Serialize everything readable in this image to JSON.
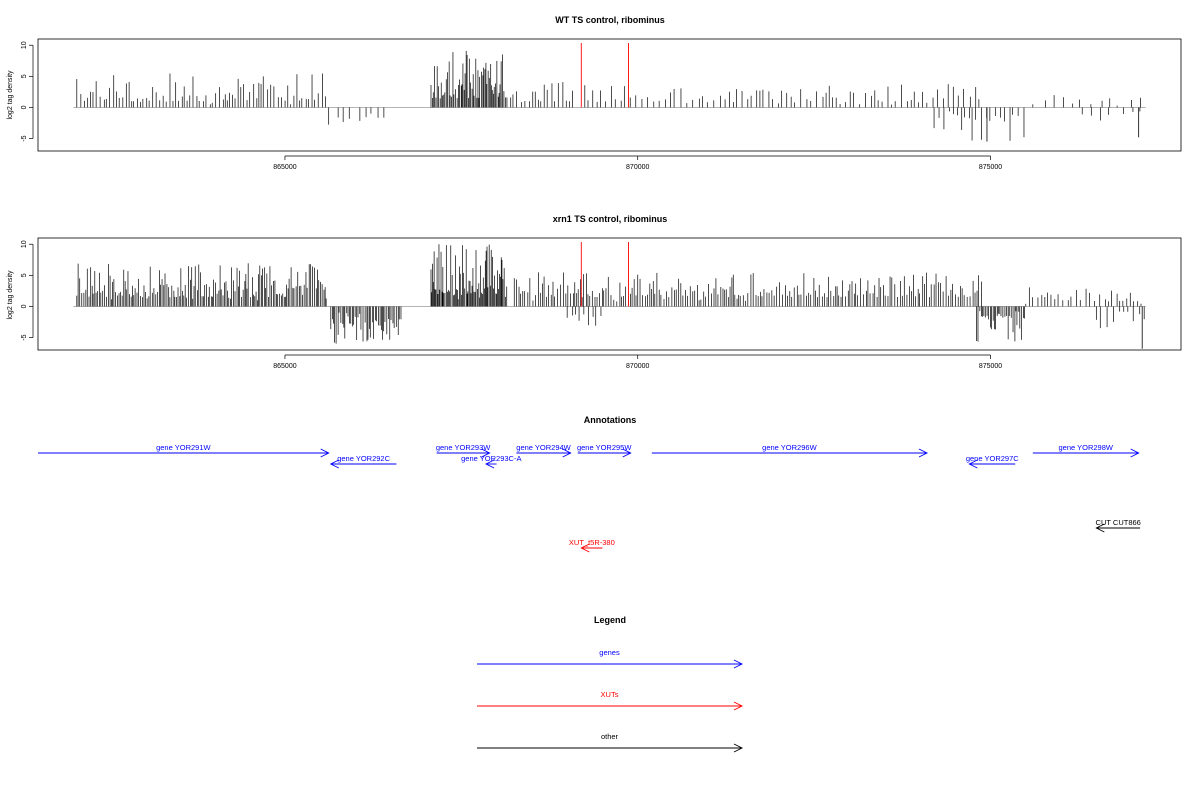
{
  "colors": {
    "genes": "#0000ff",
    "xuts": "#ff0000",
    "other": "#000000",
    "tracks": "#000000",
    "baseline": "#888888"
  },
  "chart_data": [
    {
      "type": "bar",
      "title": "WT TS control, ribominus",
      "ylabel": "log2 tag density",
      "xlim": [
        861500,
        877700
      ],
      "ylim": [
        -7,
        11
      ],
      "x_ticks": [
        865000,
        870000,
        875000
      ],
      "y_ticks": [
        -5,
        0,
        5,
        10
      ],
      "y_tick_labels": [
        "-5",
        "0",
        "5",
        "10"
      ],
      "grid": false,
      "highlight_lines": [
        869200,
        869870
      ],
      "regions": [
        {
          "start": 862050,
          "end": 865600,
          "max": 5.5,
          "min": 1,
          "step": 45,
          "sign": 1
        },
        {
          "start": 865620,
          "end": 866420,
          "max": 3.2,
          "min": 1.5,
          "step": 110,
          "sign": -1
        },
        {
          "start": 867070,
          "end": 868150,
          "max": 9.3,
          "min": 1.5,
          "step": 18,
          "sign": 1
        },
        {
          "start": 868200,
          "end": 869100,
          "max": 4.5,
          "min": 1,
          "step": 50,
          "sign": 1
        },
        {
          "start": 869250,
          "end": 874900,
          "max": 3.8,
          "min": 0.8,
          "step": 70,
          "sign": 1
        },
        {
          "start": 874200,
          "end": 875500,
          "max": 5.5,
          "min": 1,
          "step": 60,
          "sign": -1
        },
        {
          "start": 875600,
          "end": 877200,
          "max": 2,
          "min": 0.5,
          "step": 150,
          "sign": 1
        },
        {
          "start": 876300,
          "end": 877200,
          "max": 2.2,
          "min": 0.5,
          "step": 160,
          "sign": -1
        }
      ],
      "spikes": [
        [
          877100,
          -4.8
        ],
        [
          874950,
          -5.5
        ]
      ]
    },
    {
      "type": "bar",
      "title": "xrn1 TS control, ribominus",
      "ylabel": "log2 tag density",
      "xlim": [
        861500,
        877700
      ],
      "ylim": [
        -7,
        11
      ],
      "x_ticks": [
        865000,
        870000,
        875000
      ],
      "y_ticks": [
        -5,
        0,
        5,
        10
      ],
      "y_tick_labels": [
        "-5",
        "0",
        "5",
        "10"
      ],
      "grid": false,
      "highlight_lines": [
        869200,
        869870
      ],
      "regions": [
        {
          "start": 862050,
          "end": 865600,
          "max": 7,
          "min": 1.5,
          "step": 22,
          "sign": 1
        },
        {
          "start": 865650,
          "end": 866650,
          "max": 6,
          "min": 2,
          "step": 22,
          "sign": -1
        },
        {
          "start": 867070,
          "end": 868150,
          "max": 10,
          "min": 2,
          "step": 15,
          "sign": 1
        },
        {
          "start": 868250,
          "end": 874900,
          "max": 5.5,
          "min": 1.5,
          "step": 32,
          "sign": 1
        },
        {
          "start": 869000,
          "end": 869500,
          "max": 3.2,
          "min": 1,
          "step": 60,
          "sign": -1
        },
        {
          "start": 874800,
          "end": 875500,
          "max": 6.5,
          "min": 1.5,
          "step": 22,
          "sign": -1
        },
        {
          "start": 875500,
          "end": 877200,
          "max": 3.5,
          "min": 0.8,
          "step": 60,
          "sign": 1
        },
        {
          "start": 876500,
          "end": 877200,
          "max": 3.5,
          "min": 0.8,
          "step": 70,
          "sign": -1
        }
      ],
      "spikes": [
        [
          877150,
          -6.8
        ]
      ]
    }
  ],
  "annotations": {
    "title": "Annotations",
    "features": [
      {
        "label": "gene YOR291W",
        "type": "gene",
        "strand": "+",
        "start": 861500,
        "end": 865620,
        "row": 0
      },
      {
        "label": "gene YOR292C",
        "type": "gene",
        "strand": "-",
        "start": 865650,
        "end": 866580,
        "row": 1
      },
      {
        "label": "gene YOR293W",
        "type": "gene",
        "strand": "+",
        "start": 867150,
        "end": 867900,
        "row": 0
      },
      {
        "label": "gene YOR293C-A",
        "type": "gene",
        "strand": "-",
        "start": 867850,
        "end": 868000,
        "row": 1
      },
      {
        "label": "gene YOR294W",
        "type": "gene",
        "strand": "+",
        "start": 868280,
        "end": 869050,
        "row": 0
      },
      {
        "label": "gene YOR295W",
        "type": "gene",
        "strand": "+",
        "start": 869150,
        "end": 869900,
        "row": 0
      },
      {
        "label": "gene YOR296W",
        "type": "gene",
        "strand": "+",
        "start": 870200,
        "end": 874100,
        "row": 0
      },
      {
        "label": "gene YOR297C",
        "type": "gene",
        "strand": "-",
        "start": 874700,
        "end": 875350,
        "row": 1
      },
      {
        "label": "gene YOR298W",
        "type": "gene",
        "strand": "+",
        "start": 875600,
        "end": 877100,
        "row": 0
      },
      {
        "label": "CUT CUT866",
        "type": "other",
        "strand": "-",
        "start": 876500,
        "end": 877120,
        "row": 2
      },
      {
        "label": "XUT_t5R-380",
        "type": "xut",
        "strand": "-",
        "start": 869200,
        "end": 869500,
        "row": 3
      }
    ]
  },
  "legend": {
    "title": "Legend",
    "items": [
      {
        "label": "genes",
        "type": "gene"
      },
      {
        "label": "XUTs",
        "type": "xut"
      },
      {
        "label": "other",
        "type": "other"
      }
    ]
  }
}
